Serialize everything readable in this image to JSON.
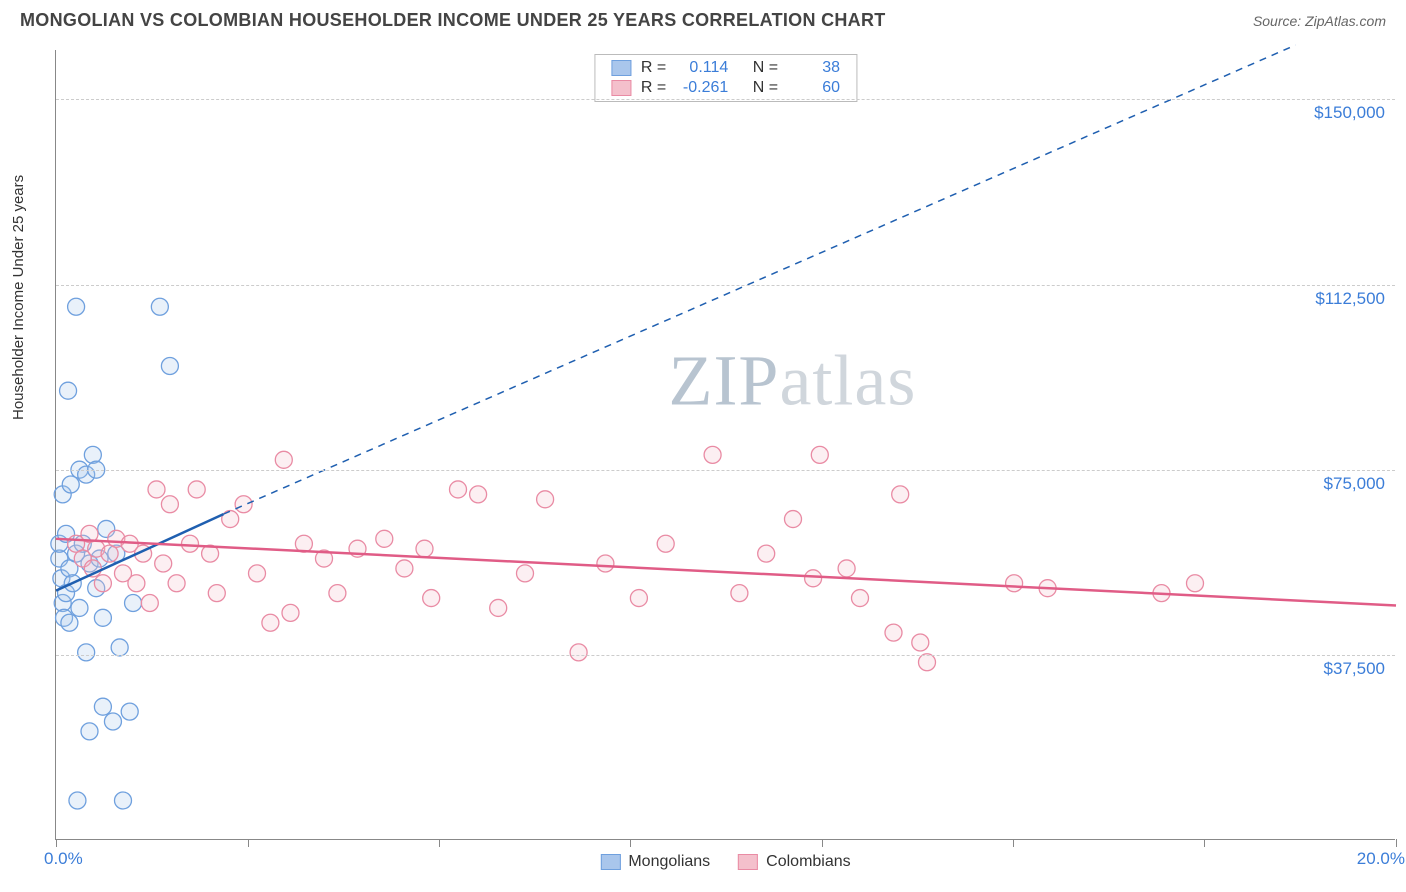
{
  "header": {
    "title": "MONGOLIAN VS COLOMBIAN HOUSEHOLDER INCOME UNDER 25 YEARS CORRELATION CHART",
    "source_label": "Source: ",
    "source_name": "ZipAtlas.com"
  },
  "watermark": {
    "part1": "ZIP",
    "part2": "atlas"
  },
  "chart": {
    "type": "scatter",
    "ylabel": "Householder Income Under 25 years",
    "xlim": [
      0,
      20
    ],
    "ylim": [
      0,
      160000
    ],
    "x_tick_label_left": "0.0%",
    "x_tick_label_right": "20.0%",
    "y_grid_values": [
      37500,
      75000,
      112500,
      150000
    ],
    "y_grid_labels": [
      "$37,500",
      "$75,000",
      "$112,500",
      "$150,000"
    ],
    "x_tick_positions": [
      0,
      2.86,
      5.71,
      8.57,
      11.43,
      14.29,
      17.14,
      20
    ],
    "background_color": "#ffffff",
    "grid_color": "#cccccc",
    "marker_radius": 8.5,
    "marker_fill_opacity": 0.25,
    "marker_stroke_width": 1.3,
    "series": [
      {
        "name": "Mongolians",
        "color_fill": "#a9c6ec",
        "color_stroke": "#6fa0de",
        "R": "0.114",
        "N": "38",
        "trend_solid": {
          "x1": 0,
          "y1": 50500,
          "x2": 2.5,
          "y2": 66000
        },
        "trend_dash": {
          "x1": 2.5,
          "y1": 66000,
          "x2": 18.5,
          "y2": 161000
        },
        "trend_line_color": "#1f5fb0",
        "points": [
          [
            0.05,
            57000
          ],
          [
            0.05,
            60000
          ],
          [
            0.08,
            53000
          ],
          [
            0.1,
            48000
          ],
          [
            0.1,
            70000
          ],
          [
            0.12,
            45000
          ],
          [
            0.15,
            50000
          ],
          [
            0.15,
            62000
          ],
          [
            0.18,
            91000
          ],
          [
            0.2,
            44000
          ],
          [
            0.2,
            55000
          ],
          [
            0.22,
            72000
          ],
          [
            0.25,
            52000
          ],
          [
            0.3,
            108000
          ],
          [
            0.3,
            58000
          ],
          [
            0.32,
            8000
          ],
          [
            0.35,
            75000
          ],
          [
            0.35,
            47000
          ],
          [
            0.4,
            60000
          ],
          [
            0.45,
            38000
          ],
          [
            0.45,
            74000
          ],
          [
            0.5,
            56000
          ],
          [
            0.5,
            22000
          ],
          [
            0.55,
            78000
          ],
          [
            0.6,
            75000
          ],
          [
            0.6,
            51000
          ],
          [
            0.65,
            57000
          ],
          [
            0.7,
            45000
          ],
          [
            0.7,
            27000
          ],
          [
            0.75,
            63000
          ],
          [
            0.85,
            24000
          ],
          [
            0.9,
            58000
          ],
          [
            0.95,
            39000
          ],
          [
            1.0,
            8000
          ],
          [
            1.1,
            26000
          ],
          [
            1.15,
            48000
          ],
          [
            1.55,
            108000
          ],
          [
            1.7,
            96000
          ]
        ]
      },
      {
        "name": "Colombians",
        "color_fill": "#f4c0cc",
        "color_stroke": "#e98ba4",
        "R": "-0.261",
        "N": "60",
        "trend_solid": {
          "x1": 0,
          "y1": 61000,
          "x2": 20,
          "y2": 47500
        },
        "trend_dash": null,
        "trend_line_color": "#e05c86",
        "points": [
          [
            0.3,
            60000
          ],
          [
            0.4,
            57000
          ],
          [
            0.5,
            62000
          ],
          [
            0.55,
            55000
          ],
          [
            0.6,
            59000
          ],
          [
            0.7,
            52000
          ],
          [
            0.8,
            58000
          ],
          [
            0.9,
            61000
          ],
          [
            1.0,
            54000
          ],
          [
            1.1,
            60000
          ],
          [
            1.2,
            52000
          ],
          [
            1.3,
            58000
          ],
          [
            1.4,
            48000
          ],
          [
            1.5,
            71000
          ],
          [
            1.6,
            56000
          ],
          [
            1.7,
            68000
          ],
          [
            1.8,
            52000
          ],
          [
            2.0,
            60000
          ],
          [
            2.1,
            71000
          ],
          [
            2.3,
            58000
          ],
          [
            2.4,
            50000
          ],
          [
            2.6,
            65000
          ],
          [
            2.8,
            68000
          ],
          [
            3.0,
            54000
          ],
          [
            3.2,
            44000
          ],
          [
            3.4,
            77000
          ],
          [
            3.5,
            46000
          ],
          [
            3.7,
            60000
          ],
          [
            4.0,
            57000
          ],
          [
            4.2,
            50000
          ],
          [
            4.5,
            59000
          ],
          [
            4.9,
            61000
          ],
          [
            5.2,
            55000
          ],
          [
            5.5,
            59000
          ],
          [
            5.6,
            49000
          ],
          [
            6.0,
            71000
          ],
          [
            6.3,
            70000
          ],
          [
            6.6,
            47000
          ],
          [
            7.0,
            54000
          ],
          [
            7.3,
            69000
          ],
          [
            7.8,
            38000
          ],
          [
            8.2,
            56000
          ],
          [
            8.7,
            49000
          ],
          [
            9.1,
            60000
          ],
          [
            9.8,
            78000
          ],
          [
            10.2,
            50000
          ],
          [
            10.6,
            58000
          ],
          [
            11.0,
            65000
          ],
          [
            11.3,
            53000
          ],
          [
            11.4,
            78000
          ],
          [
            11.8,
            55000
          ],
          [
            12.0,
            49000
          ],
          [
            12.5,
            42000
          ],
          [
            12.6,
            70000
          ],
          [
            12.9,
            40000
          ],
          [
            13.0,
            36000
          ],
          [
            14.3,
            52000
          ],
          [
            14.8,
            51000
          ],
          [
            16.5,
            50000
          ],
          [
            17.0,
            52000
          ]
        ]
      }
    ],
    "legend_top": {
      "r_label": "R  =",
      "n_label": "N  ="
    },
    "legend_bottom_labels": [
      "Mongolians",
      "Colombians"
    ]
  }
}
